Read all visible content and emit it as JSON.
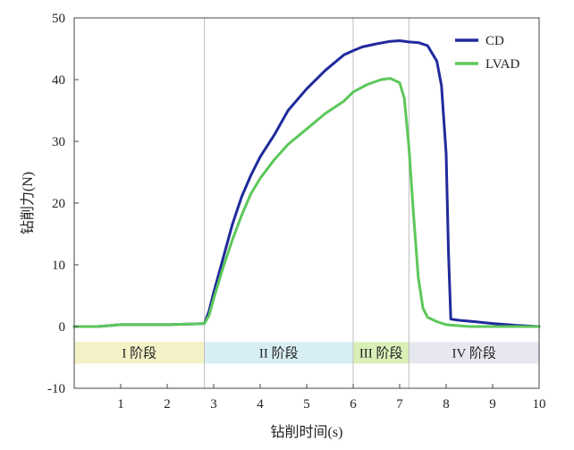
{
  "chart_data": {
    "type": "line",
    "xlabel": "钻削时间(s)",
    "ylabel": "钻削力(N)",
    "xlim": [
      0,
      10
    ],
    "ylim": [
      -10,
      50
    ],
    "x_ticks": [
      1,
      2,
      3,
      4,
      5,
      6,
      7,
      8,
      9,
      10
    ],
    "y_ticks": [
      -10,
      0,
      10,
      20,
      30,
      40,
      50
    ],
    "grid": false,
    "legend_position": "top-right",
    "series": [
      {
        "name": "CD",
        "color": "#1f2a9c",
        "x": [
          0,
          0.5,
          1,
          1.5,
          2,
          2.5,
          2.8,
          2.9,
          3.0,
          3.2,
          3.4,
          3.6,
          3.8,
          4.0,
          4.3,
          4.6,
          5.0,
          5.4,
          5.8,
          6.0,
          6.2,
          6.5,
          6.8,
          7.0,
          7.2,
          7.4,
          7.6,
          7.8,
          7.9,
          8.0,
          8.05,
          8.1,
          8.3,
          8.6,
          9.0,
          9.5,
          10.0
        ],
        "y": [
          0,
          0,
          0.3,
          0.3,
          0.3,
          0.4,
          0.5,
          2.5,
          5.5,
          11,
          16.5,
          21,
          24.5,
          27.5,
          31,
          35,
          38.5,
          41.5,
          44,
          44.7,
          45.3,
          45.8,
          46.2,
          46.3,
          46.1,
          46,
          45.5,
          43,
          39,
          28,
          12,
          1.2,
          1,
          0.8,
          0.5,
          0.2,
          0
        ]
      },
      {
        "name": "LVAD",
        "color": "#5cc85a",
        "x": [
          0,
          0.5,
          1,
          1.5,
          2,
          2.5,
          2.8,
          2.9,
          3.0,
          3.2,
          3.4,
          3.6,
          3.8,
          4.0,
          4.3,
          4.6,
          5.0,
          5.4,
          5.8,
          6.0,
          6.3,
          6.6,
          6.8,
          7.0,
          7.1,
          7.2,
          7.3,
          7.4,
          7.5,
          7.6,
          7.8,
          8.0,
          8.5,
          9.0,
          9.5,
          10.0
        ],
        "y": [
          0,
          0,
          0.3,
          0.3,
          0.3,
          0.4,
          0.5,
          1.8,
          4.5,
          9.5,
          14,
          18,
          21.5,
          24,
          27,
          29.5,
          32,
          34.5,
          36.5,
          38,
          39.2,
          40,
          40.2,
          39.5,
          37,
          29,
          18,
          8,
          3,
          1.5,
          0.8,
          0.3,
          0,
          0,
          0,
          0
        ]
      }
    ],
    "stages": [
      {
        "label": "I 阶段",
        "x_start": 0,
        "x_end": 2.8,
        "color": "#f3f1c6"
      },
      {
        "label": "II 阶段",
        "x_start": 2.8,
        "x_end": 6.0,
        "color": "#d8eef5"
      },
      {
        "label": "III 阶段",
        "x_start": 6.0,
        "x_end": 7.2,
        "color": "#d9efb8"
      },
      {
        "label": "IV 阶段",
        "x_start": 7.2,
        "x_end": 10.0,
        "color": "#e7e7f0"
      }
    ],
    "stage_band_y": [
      -6,
      -2.5
    ],
    "stage_dividers": [
      2.8,
      6.0,
      7.2
    ]
  }
}
